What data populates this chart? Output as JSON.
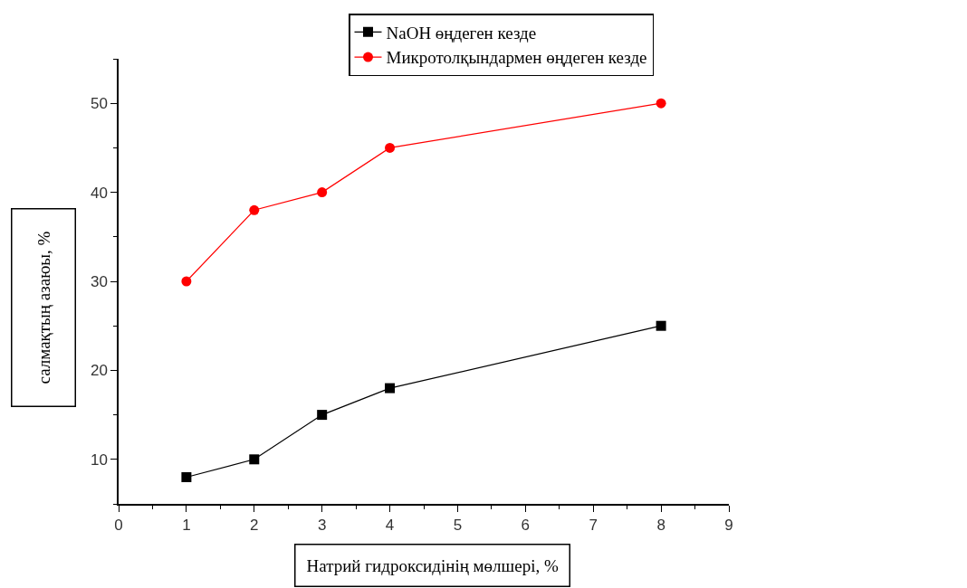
{
  "chart_data": {
    "type": "line",
    "xlabel": "Натрий гидроксидінің мөлшері, %",
    "ylabel": "салмақтың азаюы, %",
    "x": [
      1,
      2,
      3,
      4,
      8
    ],
    "series": [
      {
        "name": "NaOH өңдеген кезде",
        "color": "#000000",
        "marker": "square",
        "values": [
          8,
          10,
          15,
          18,
          25
        ]
      },
      {
        "name": "Микротолқындармен өңдеген кезде",
        "color": "#ff0000",
        "marker": "circle",
        "values": [
          30,
          38,
          40,
          45,
          50
        ]
      }
    ],
    "xlim": [
      0,
      9
    ],
    "xticks": [
      0,
      1,
      2,
      3,
      4,
      5,
      6,
      7,
      8,
      9
    ],
    "ylim": [
      5,
      55
    ],
    "yticks": [
      10,
      20,
      30,
      40,
      50
    ],
    "legend": "top",
    "line_style": "solid"
  }
}
